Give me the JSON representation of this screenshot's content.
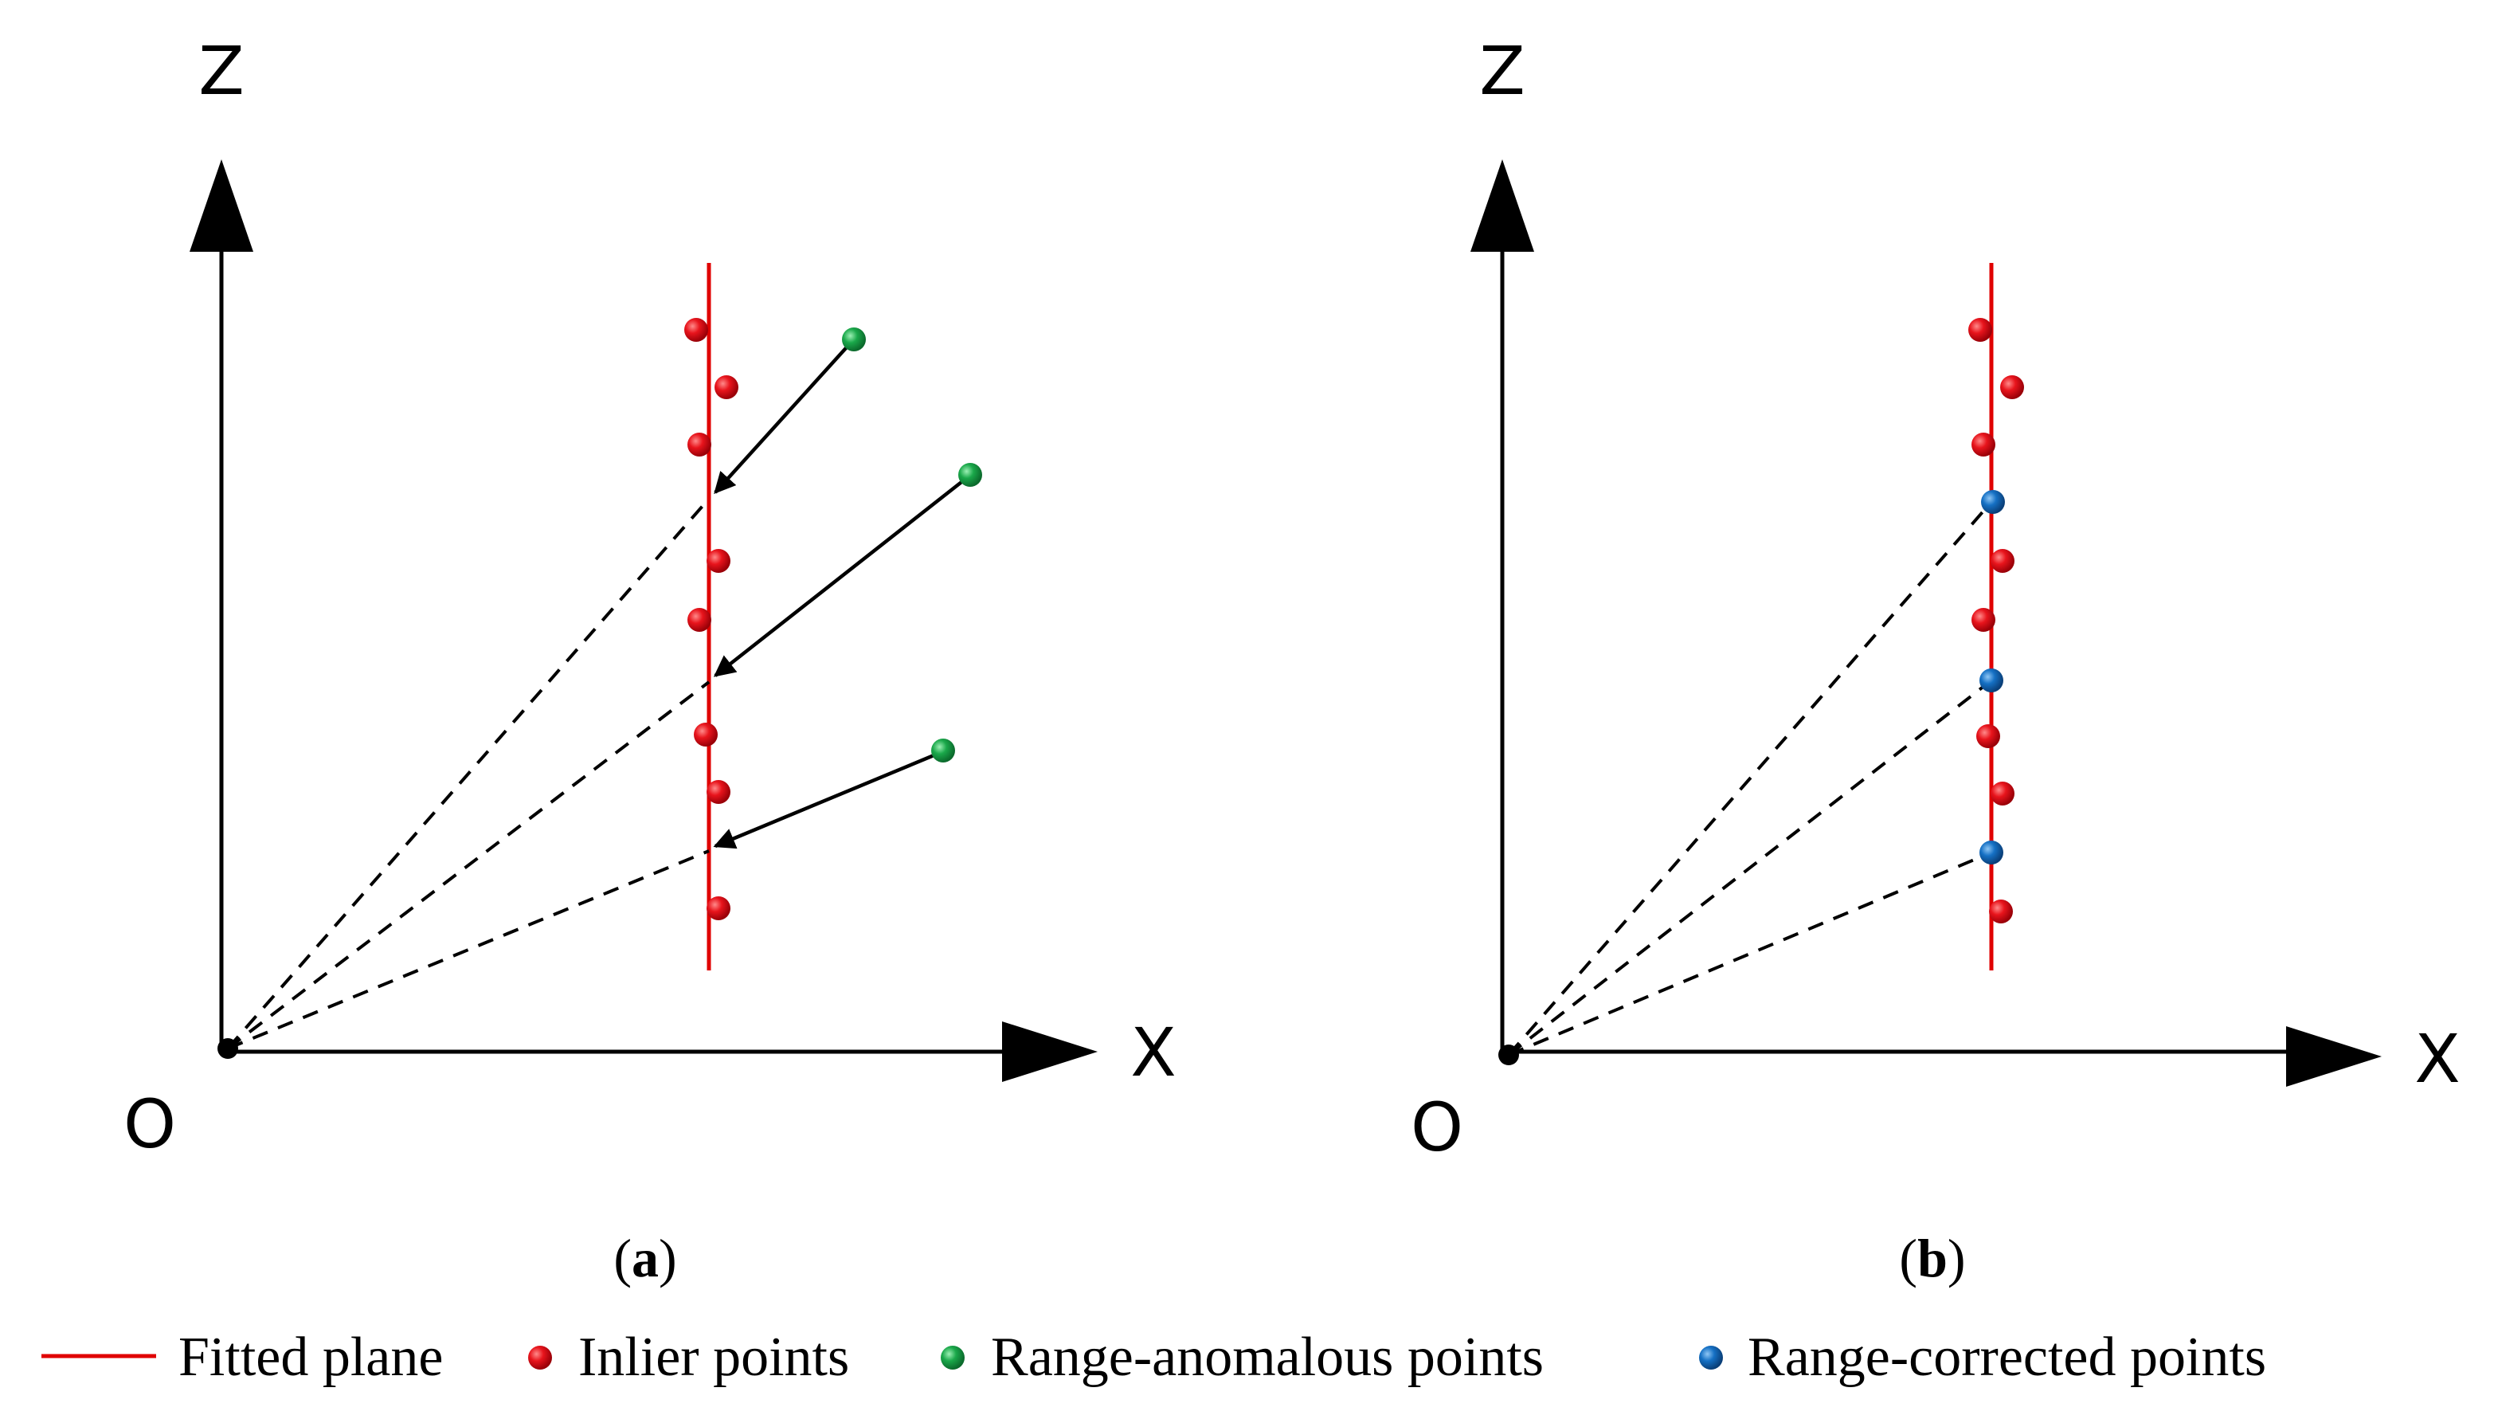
{
  "colors": {
    "plane": "#e00000",
    "inlier": "#e8141c",
    "anomalous": "#1aa84a",
    "corrected": "#1570c4",
    "axis": "#000000"
  },
  "panel_a": {
    "axis_z": "Z",
    "axis_x": "X",
    "origin": "O",
    "caption_open": "(",
    "caption_letter": "a",
    "caption_close": ")"
  },
  "panel_b": {
    "axis_z": "Z",
    "axis_x": "X",
    "origin": "O",
    "caption_open": "(",
    "caption_letter": "b",
    "caption_close": ")"
  },
  "legend": {
    "plane_label": "Fitted plane",
    "inlier_label": "Inlier points",
    "anomalous_label": "Range-anomalous points",
    "corrected_label": "Range-corrected points"
  }
}
